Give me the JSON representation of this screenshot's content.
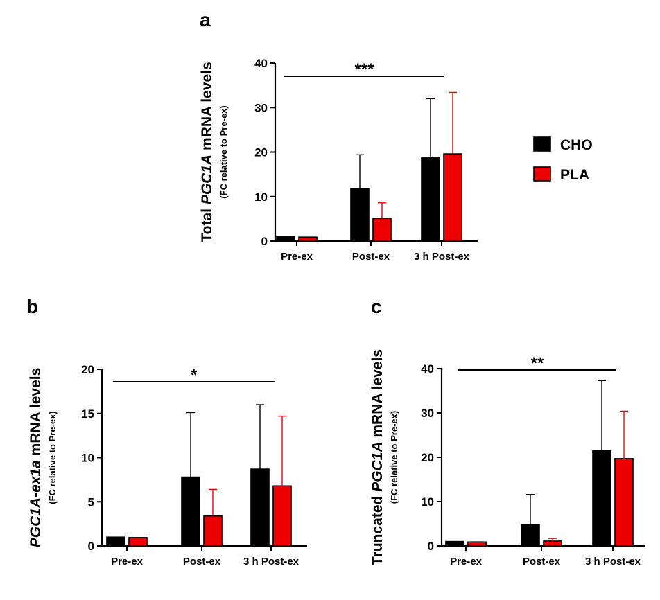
{
  "colors": {
    "CHO": "#000000",
    "PLA": "#ee0000",
    "axis": "#000000"
  },
  "legend": [
    {
      "name": "CHO",
      "color": "#000000"
    },
    {
      "name": "PLA",
      "color": "#ee0000"
    }
  ],
  "chart_data": [
    {
      "panel": "a",
      "type": "bar",
      "categories": [
        "Pre-ex",
        "Post-ex",
        "3 h Post-ex"
      ],
      "ylabel_parts": [
        "Total ",
        "PGC1A",
        " mRNA levels"
      ],
      "ylabel_italic": [
        false,
        true,
        false
      ],
      "ysubtitle": "(FC relative to Pre-ex)",
      "ylim": [
        0,
        40
      ],
      "yticks": [
        0,
        10,
        20,
        30,
        40
      ],
      "series": [
        {
          "name": "CHO",
          "values": [
            1.0,
            11.8,
            18.7
          ],
          "errors": [
            0,
            7.6,
            13.3
          ]
        },
        {
          "name": "PLA",
          "values": [
            0.9,
            5.1,
            19.6
          ],
          "errors": [
            0,
            3.5,
            13.8
          ]
        }
      ],
      "significance": {
        "label": "***",
        "from_category": 0,
        "to_category": 2
      }
    },
    {
      "panel": "b",
      "type": "bar",
      "categories": [
        "Pre-ex",
        "Post-ex",
        "3 h Post-ex"
      ],
      "ylabel_parts": [
        "PGC1A-ex1a",
        " mRNA levels"
      ],
      "ylabel_italic": [
        true,
        false
      ],
      "ysubtitle": "(FC relative to Pre-ex)",
      "ylim": [
        0,
        20
      ],
      "yticks": [
        0,
        5,
        10,
        15,
        20
      ],
      "series": [
        {
          "name": "CHO",
          "values": [
            1.0,
            7.8,
            8.7
          ],
          "errors": [
            0,
            7.3,
            7.3
          ]
        },
        {
          "name": "PLA",
          "values": [
            0.95,
            3.4,
            6.8
          ],
          "errors": [
            0,
            3.0,
            7.9
          ]
        }
      ],
      "significance": {
        "label": "*",
        "from_category": 0,
        "to_category": 2
      }
    },
    {
      "panel": "c",
      "type": "bar",
      "categories": [
        "Pre-ex",
        "Post-ex",
        "3 h Post-ex"
      ],
      "ylabel_parts": [
        "Truncated ",
        "PGC1A",
        " mRNA levels"
      ],
      "ylabel_italic": [
        false,
        true,
        false
      ],
      "ysubtitle": "(FC relative to Pre-ex)",
      "ylim": [
        0,
        40
      ],
      "yticks": [
        0,
        10,
        20,
        30,
        40
      ],
      "series": [
        {
          "name": "CHO",
          "values": [
            1.0,
            4.8,
            21.5
          ],
          "errors": [
            0,
            6.8,
            15.8
          ]
        },
        {
          "name": "PLA",
          "values": [
            0.9,
            1.1,
            19.7
          ],
          "errors": [
            0,
            0.6,
            10.7
          ]
        }
      ],
      "significance": {
        "label": "**",
        "from_category": 0,
        "to_category": 2
      }
    }
  ]
}
